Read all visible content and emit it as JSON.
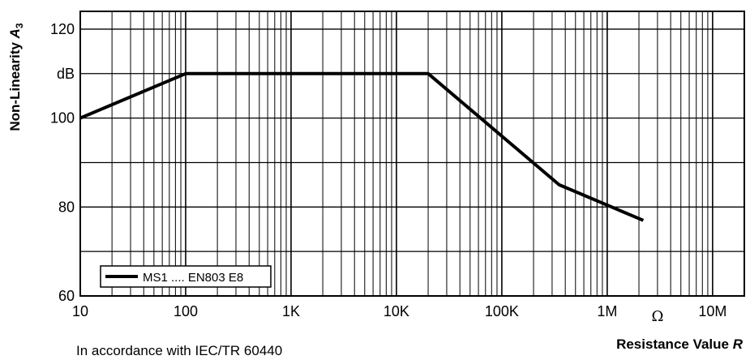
{
  "chart_data": {
    "type": "line",
    "x_scale": "log",
    "xlim": [
      10,
      20000000
    ],
    "ylim": [
      60,
      124
    ],
    "x_ticks": [
      {
        "value": 10,
        "label": "10"
      },
      {
        "value": 100,
        "label": "100"
      },
      {
        "value": 1000,
        "label": "1K"
      },
      {
        "value": 10000,
        "label": "10K"
      },
      {
        "value": 100000,
        "label": "100K"
      },
      {
        "value": 1000000,
        "label": "1M"
      },
      {
        "value": 10000000,
        "label": "10M"
      }
    ],
    "x_unit_symbol": "Ω",
    "y_ticks": [
      {
        "value": 60,
        "label": "60"
      },
      {
        "value": 80,
        "label": "80"
      },
      {
        "value": 100,
        "label": "100"
      },
      {
        "value": 120,
        "label": "120"
      }
    ],
    "y_gridlines": [
      60,
      70,
      80,
      90,
      100,
      110,
      120
    ],
    "y_unit": "dB",
    "y_unit_value": 110,
    "xlabel": "Resistance Value R",
    "ylabel": "Non-Linearity A3",
    "grid": true,
    "legend_position": "bottom-left",
    "series": [
      {
        "name": "MS1 .... EN803 E8",
        "color": "#000000",
        "x": [
          10,
          100,
          20000,
          350000,
          2200000
        ],
        "y": [
          100,
          110,
          110,
          85,
          77
        ]
      }
    ],
    "annotation": "In accordance with IEC/TR 60440"
  }
}
